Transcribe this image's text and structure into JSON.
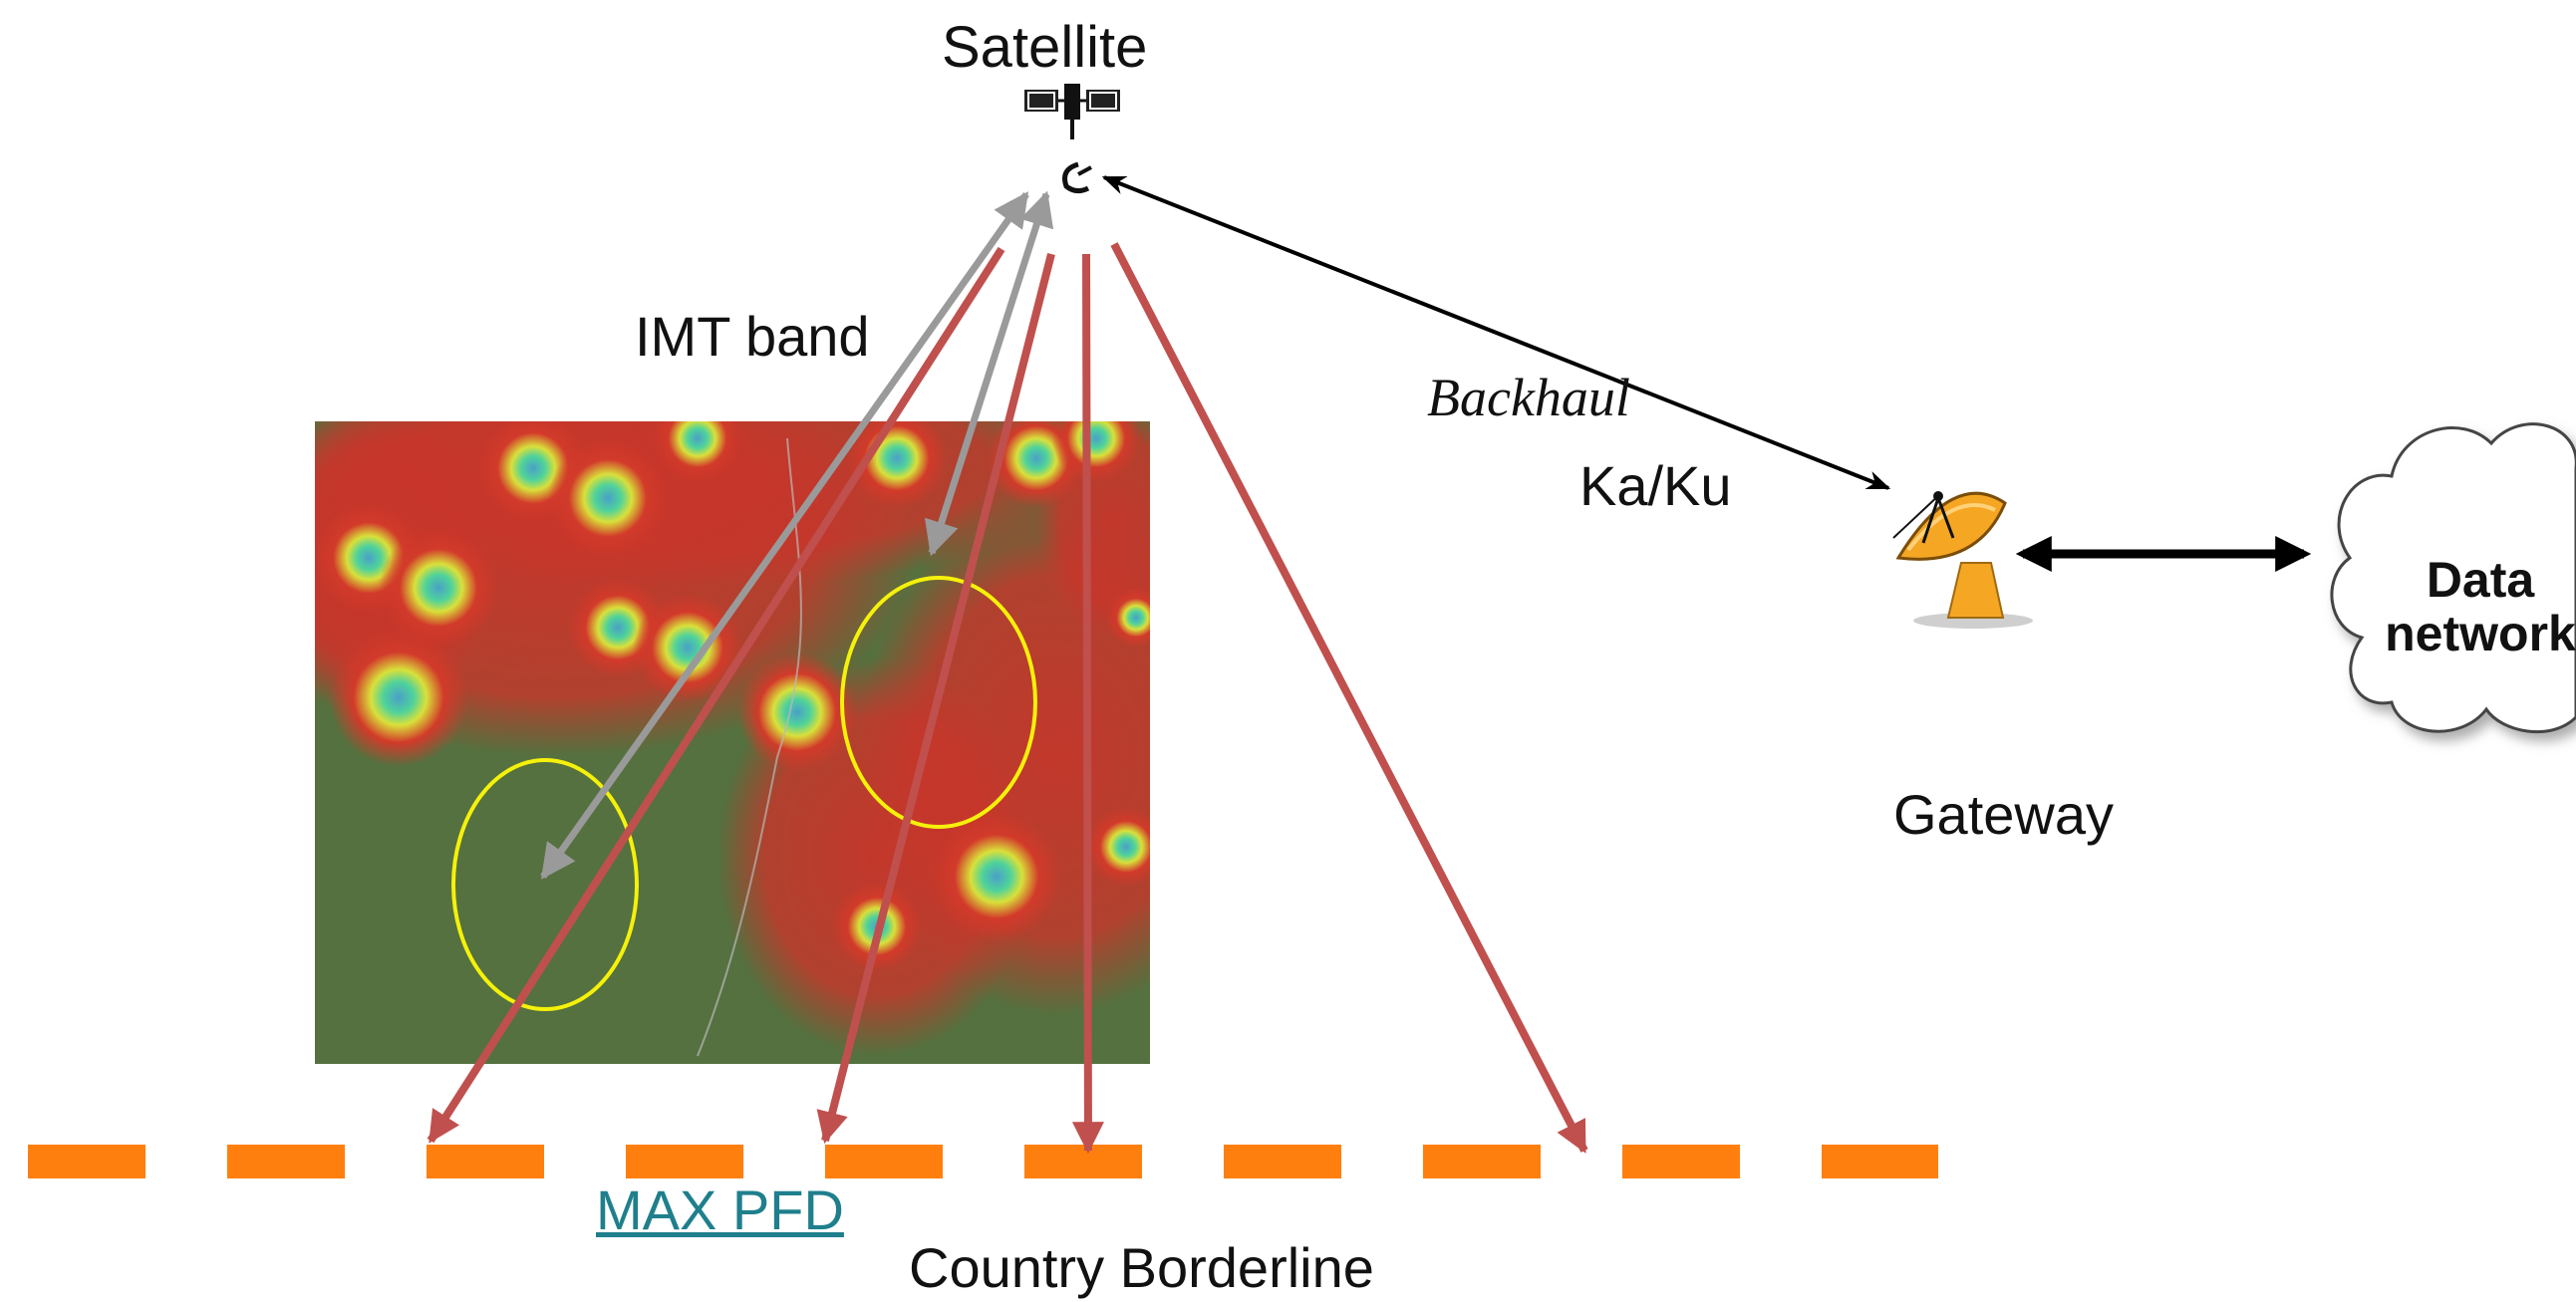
{
  "labels": {
    "satellite": "Satellite",
    "imt_band": "IMT band",
    "backhaul": "Backhaul",
    "ka_ku": "Ka/Ku",
    "gateway": "Gateway",
    "max_pfd": "MAX PFD",
    "country_borderline": "Country Borderline",
    "data_network_line1": "Data",
    "data_network_line2": "network"
  },
  "colors": {
    "imt_arrow": "#9a9a9a",
    "pfd_arrow": "#c0504d",
    "borderline": "#ff7f0e",
    "backhaul_arrow": "#000000",
    "coverage_ellipse": "#f5f10a",
    "map_green": "#4f6b3a",
    "map_red": "#c83a2a",
    "map_yellow": "#e8d23a",
    "map_cyan": "#47c7a8",
    "dish_orange": "#f5a623",
    "max_pfd_text": "#1f7f8c"
  },
  "icons": {
    "satellite": "satellite-icon",
    "gateway": "satellite-dish-icon",
    "data_network": "cloud-icon"
  }
}
